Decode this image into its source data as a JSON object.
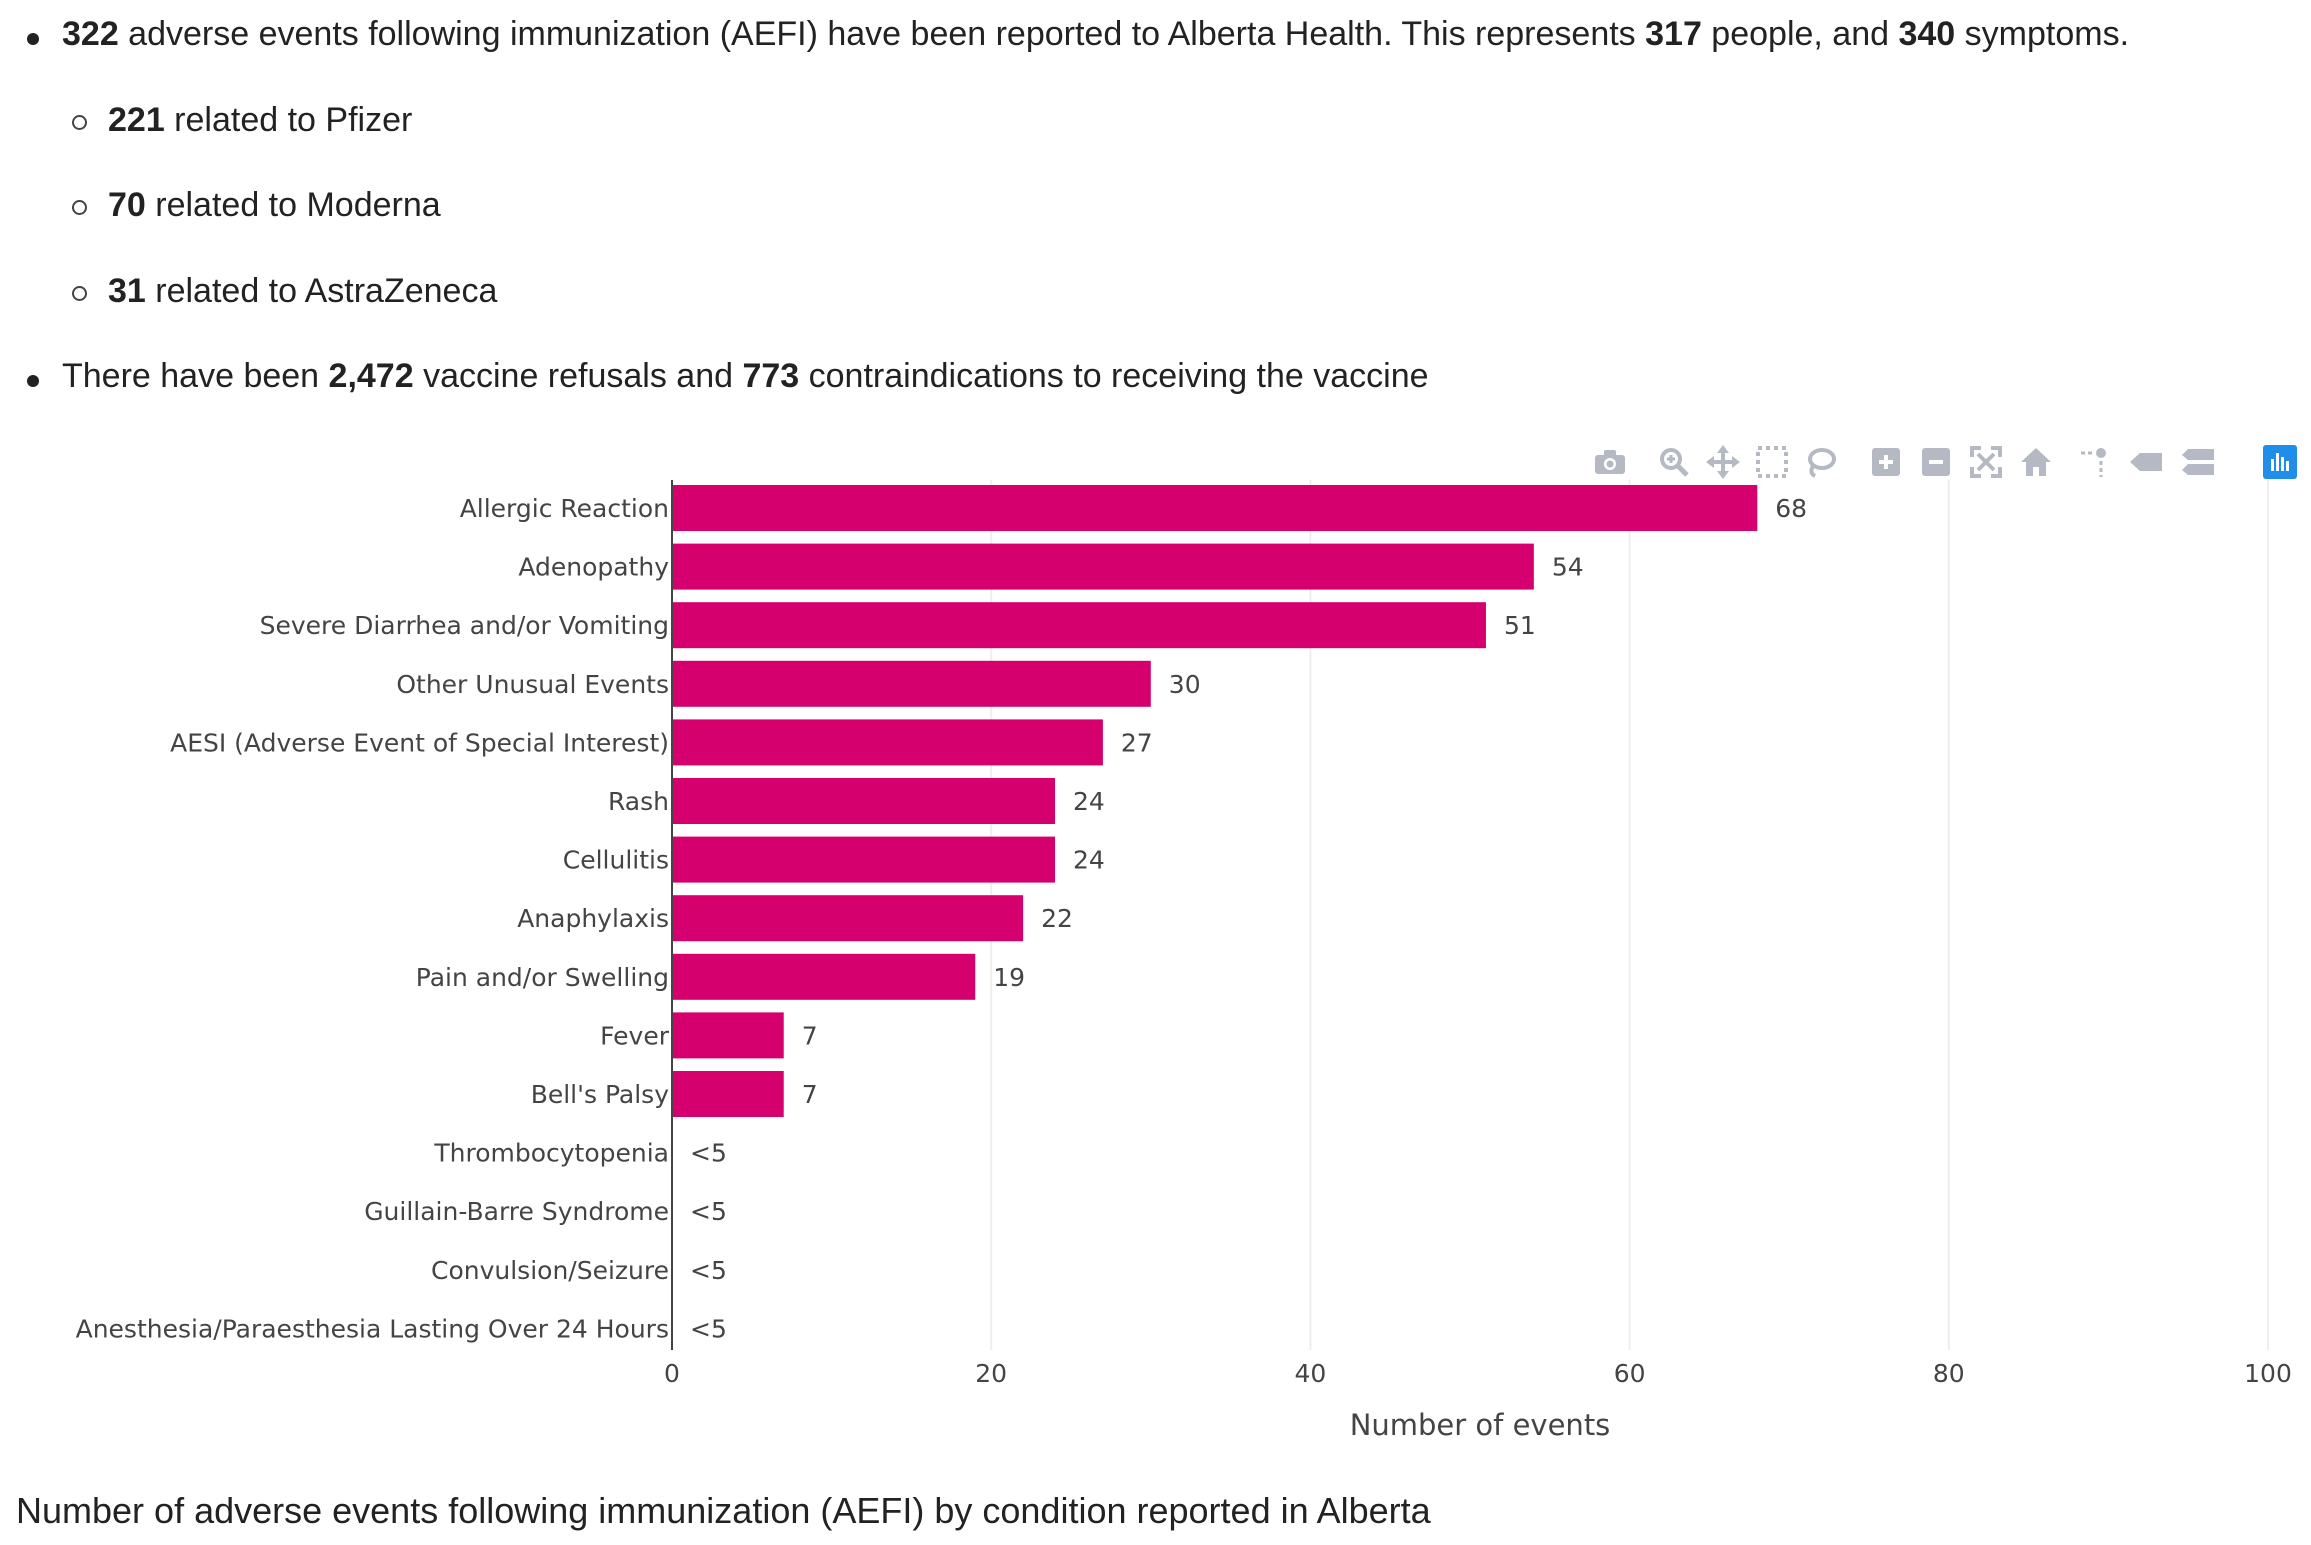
{
  "summary": {
    "line1": {
      "n_events": "322",
      "text_a": " adverse events following immunization (AEFI) have been reported to Alberta Health. This represents ",
      "n_people": "317",
      "text_b": " people, and ",
      "n_symptoms": "340",
      "text_c": " symptoms."
    },
    "sub_items": [
      {
        "count": "221",
        "text": " related to Pfizer"
      },
      {
        "count": "70",
        "text": " related to Moderna"
      },
      {
        "count": "31",
        "text": " related to AstraZeneca"
      }
    ],
    "line2": {
      "text_a": "There have been ",
      "n_refusals": "2,472",
      "text_b": " vaccine refusals and ",
      "n_contra": "773",
      "text_c": " contraindications to receiving the vaccine"
    }
  },
  "toolbar": {
    "icons": [
      "camera-icon",
      "zoom-icon",
      "pan-icon",
      "box-select-icon",
      "lasso-select-icon",
      "zoom-in-icon",
      "zoom-out-icon",
      "autoscale-icon",
      "reset-axes-icon",
      "spike-lines-icon",
      "hover-closest-icon",
      "hover-compare-icon",
      "plotly-logo-icon"
    ]
  },
  "chart_data": {
    "type": "bar",
    "orientation": "horizontal",
    "categories": [
      "Allergic Reaction",
      "Adenopathy",
      "Severe Diarrhea and/or Vomiting",
      "Other Unusual Events",
      "AESI (Adverse Event of Special Interest)",
      "Rash",
      "Cellulitis",
      "Anaphylaxis",
      "Pain and/or Swelling",
      "Fever",
      "Bell's Palsy",
      "Thrombocytopenia",
      "Guillain-Barre Syndrome",
      "Convulsion/Seizure",
      "Anesthesia/Paraesthesia Lasting Over 24 Hours"
    ],
    "values": [
      68,
      54,
      51,
      30,
      27,
      24,
      24,
      22,
      19,
      7,
      7,
      0,
      0,
      0,
      0
    ],
    "data_labels": [
      "68",
      "54",
      "51",
      "30",
      "27",
      "24",
      "24",
      "22",
      "19",
      "7",
      "7",
      "<5",
      "<5",
      "<5",
      "<5"
    ],
    "xlabel": "Number of events",
    "ylabel": "",
    "xlim": [
      0,
      100
    ],
    "xticks": [
      0,
      20,
      40,
      60,
      80,
      100
    ],
    "bar_color": "#d5006d",
    "grid": true
  },
  "caption": "Number of adverse events following immunization (AEFI) by condition reported in Alberta"
}
